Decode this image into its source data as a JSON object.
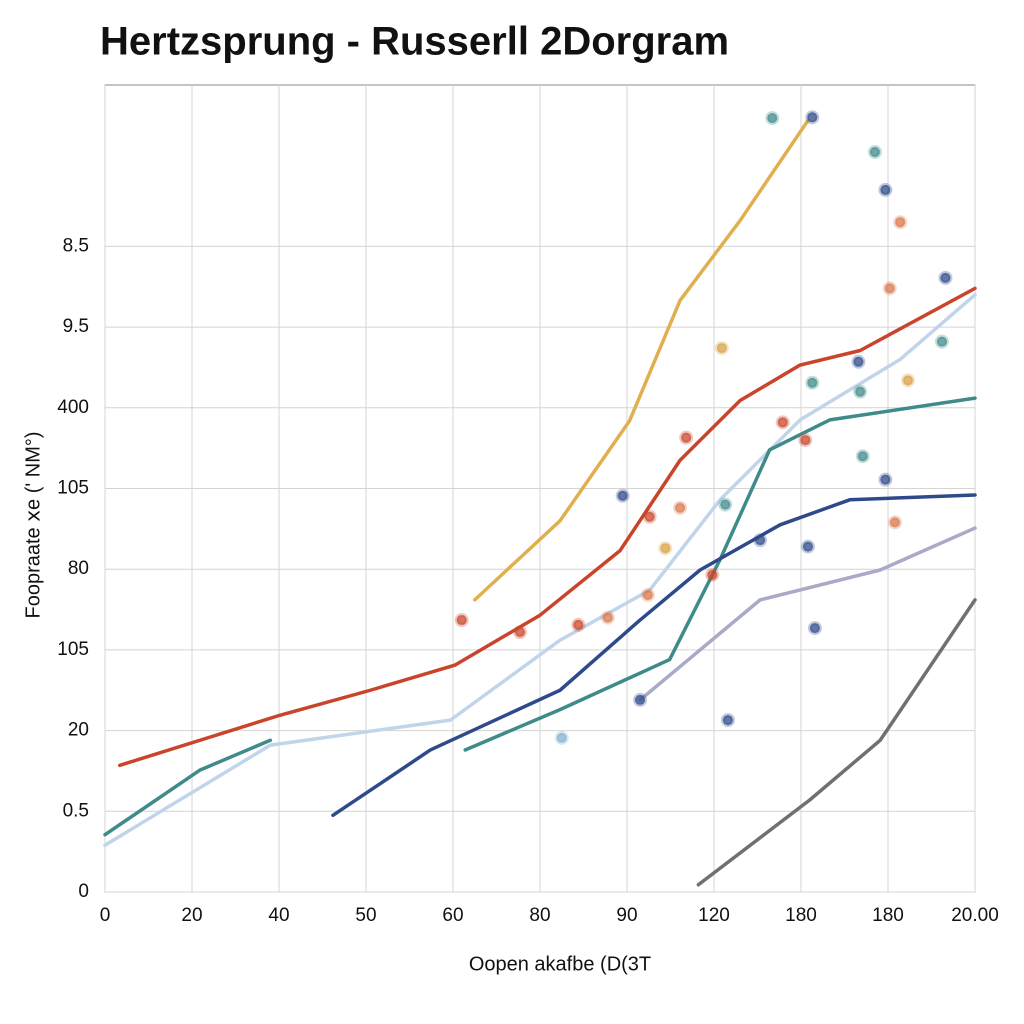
{
  "chart_data": {
    "type": "line",
    "title": "Hertzsprung - Russerll 2Dorgram",
    "xlabel": "Oopen akafbe (D(3T",
    "ylabel": "Foopraate ⅹe (' NM°)",
    "xlim": [
      0,
      10
    ],
    "ylim": [
      0,
      10
    ],
    "grid": true,
    "xticks": [
      {
        "value": 0,
        "label": "0"
      },
      {
        "value": 1,
        "label": "20"
      },
      {
        "value": 2,
        "label": "40"
      },
      {
        "value": 3,
        "label": "50"
      },
      {
        "value": 4,
        "label": "60"
      },
      {
        "value": 5,
        "label": "80"
      },
      {
        "value": 6,
        "label": "90"
      },
      {
        "value": 7,
        "label": "120"
      },
      {
        "value": 8,
        "label": "180"
      },
      {
        "value": 9,
        "label": "180"
      },
      {
        "value": 10,
        "label": "20.00"
      }
    ],
    "yticks": [
      {
        "value": 0,
        "label": "0"
      },
      {
        "value": 1,
        "label": "0.5"
      },
      {
        "value": 2,
        "label": "20"
      },
      {
        "value": 3,
        "label": "105"
      },
      {
        "value": 4,
        "label": "80"
      },
      {
        "value": 5,
        "label": "105"
      },
      {
        "value": 6,
        "label": "400"
      },
      {
        "value": 7,
        "label": "9.5"
      },
      {
        "value": 8,
        "label": "8.5"
      }
    ],
    "series": [
      {
        "color": "#e0b050",
        "x": [
          4.25,
          5.23,
          6.03,
          6.61,
          7.3,
          8.08
        ],
        "values": [
          3.62,
          4.6,
          5.84,
          7.33,
          8.32,
          9.56
        ]
      },
      {
        "color": "#c0d4ea",
        "x": [
          0,
          1.9,
          3.97,
          5.23,
          6.26,
          7.07,
          7.99,
          9.14,
          10
        ],
        "values": [
          0.58,
          1.82,
          2.13,
          3.12,
          3.74,
          4.86,
          5.85,
          6.6,
          7.4
        ]
      },
      {
        "color": "#3f8a8a",
        "x": [
          0,
          1.09,
          1.9,
          null,
          4.14,
          5.23,
          6.49,
          7.07,
          7.64,
          8.33,
          10
        ],
        "values": [
          0.71,
          1.51,
          1.88,
          null,
          1.76,
          2.26,
          2.88,
          4.12,
          5.48,
          5.85,
          6.12
        ]
      },
      {
        "color": "#c9442a",
        "x": [
          0.17,
          2.01,
          3.05,
          4.02,
          5,
          5.92,
          6.61,
          7.3,
          7.99,
          8.68,
          10
        ],
        "values": [
          1.57,
          2.19,
          2.5,
          2.81,
          3.43,
          4.23,
          5.35,
          6.09,
          6.53,
          6.71,
          7.48
        ]
      },
      {
        "color": "#2e4a8a",
        "x": [
          2.62,
          3.74,
          5.23,
          6.15,
          6.84,
          7.76,
          8.56,
          10
        ],
        "values": [
          0.95,
          1.76,
          2.5,
          3.37,
          3.99,
          4.55,
          4.86,
          4.92
        ]
      },
      {
        "color": "#a9a9c8",
        "x": [
          6.15,
          7.53,
          8.91,
          10
        ],
        "values": [
          2.38,
          3.62,
          3.99,
          4.51
        ]
      },
      {
        "color": "#707070",
        "x": [
          6.82,
          8.1,
          8.91,
          10
        ],
        "values": [
          0.09,
          1.14,
          1.88,
          3.62
        ]
      }
    ],
    "points": {
      "x": [
        8.13,
        7.67,
        8.85,
        8.97,
        9.14,
        9.02,
        9.66,
        7.09,
        8.66,
        9.62,
        9.23,
        8.68,
        8.13,
        7.79,
        8.05,
        6.68,
        5.95,
        6.26,
        6.61,
        7.13,
        7.53,
        8.08,
        9.08,
        6.44,
        6.98,
        6.24,
        5.78,
        4.1,
        4.77,
        5.44,
        6.15,
        7.16,
        8.16,
        5.25,
        8.97,
        8.71
      ],
      "values": [
        9.6,
        9.59,
        9.17,
        8.7,
        8.3,
        7.48,
        7.61,
        6.74,
        6.57,
        6.82,
        6.34,
        6.2,
        6.31,
        5.82,
        5.6,
        5.63,
        4.91,
        4.65,
        4.76,
        4.8,
        4.36,
        4.28,
        4.58,
        4.26,
        3.93,
        3.68,
        3.4,
        3.37,
        3.22,
        3.31,
        2.38,
        2.13,
        3.27,
        1.91,
        5.11,
        5.4
      ],
      "colors": [
        "#2e4a8a",
        "#3f8a8a",
        "#3f8a8a",
        "#2e4a8a",
        "#d9774a",
        "#d9774a",
        "#2e4a8a",
        "#d9a040",
        "#2e4a8a",
        "#3f8a8a",
        "#d9a040",
        "#3f8a8a",
        "#3f8a8a",
        "#c9442a",
        "#c9442a",
        "#c9442a",
        "#2e4a8a",
        "#c9442a",
        "#d9774a",
        "#3f8a8a",
        "#2e4a8a",
        "#2e4a8a",
        "#d9774a",
        "#d9a040",
        "#c9442a",
        "#d9774a",
        "#d9774a",
        "#c9442a",
        "#c9442a",
        "#c9442a",
        "#2e4a8a",
        "#2e4a8a",
        "#2e4a8a",
        "#7fb0d0",
        "#2e4a8a",
        "#3f8a8a"
      ]
    }
  }
}
